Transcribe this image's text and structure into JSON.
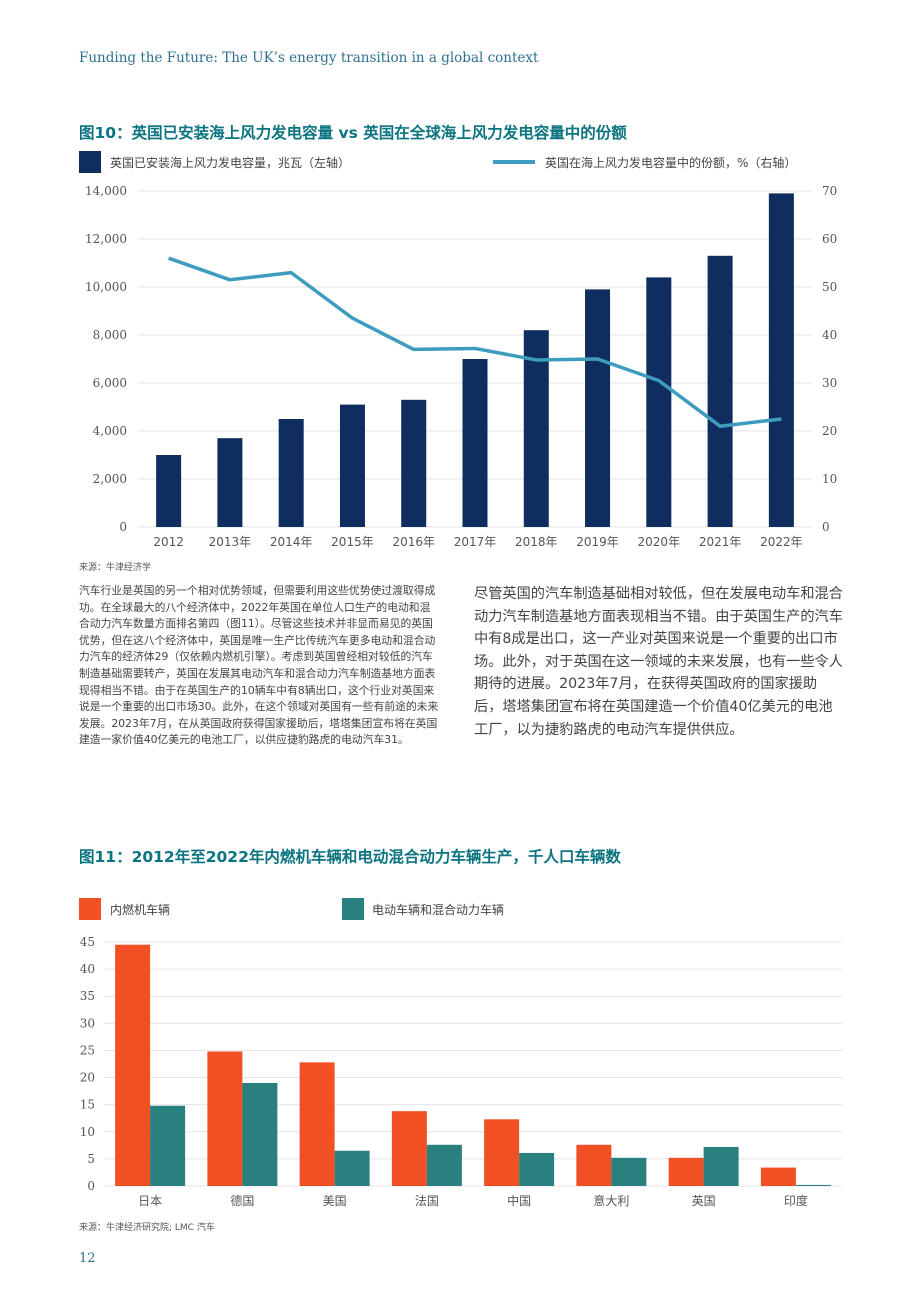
{
  "header": {
    "running_title": "Funding the Future: The UK’s energy transition in a global context"
  },
  "figure10": {
    "title": "图10：英国已安装海上风力发电容量 vs 英国在全球海上风力发电容量中的份额",
    "source": "来源：牛津经济学"
  },
  "figure11": {
    "title": "图11：2012年至2022年内燃机车辆和电动混合动力车辆生产，千人口车辆数",
    "source": "来源：牛津经济研究院; LMC 汽车"
  },
  "body": {
    "left_paragraph": "汽车行业是英国的另一个相对优势领域，但需要利用这些优势使过渡取得成功。在全球最大的八个经济体中，2022年英国在单位人口生产的电动和混合动力汽车数量方面排名第四（图11）。尽管这些技术并非显而易见的英国优势，但在这八个经济体中，英国是唯一生产比传统汽车更多电动和混合动力汽车的经济体29（仅依赖内燃机引擎）。考虑到英国曾经相对较低的汽车制造基础需要转产，英国在发展其电动汽车和混合动力汽车制造基地方面表现得相当不错。由于在英国生产的10辆车中有8辆出口，这个行业对英国来说是一个重要的出口市场30。此外，在这个领域对英国有一些有前途的未来发展。2023年7月，在从英国政府获得国家援助后，塔塔集团宣布将在英国建造一家价值40亿美元的电池工厂，以供应捷豹路虎的电动汽车31。",
    "right_paragraph": "尽管英国的汽车制造基础相对较低，但在发展电动车和混合动力汽车制造基地方面表现相当不错。由于英国生产的汽车中有8成是出口，这一产业对英国来说是一个重要的出口市场。此外，对于英国在这一领域的未来发展，也有一些令人期待的进展。2023年7月，在获得英国政府的国家援助后，塔塔集团宣布将在英国建造一个价值40亿美元的电池工厂，以为捷豹路虎的电动汽车提供供应。"
  },
  "page_number": "12",
  "chart_data": [
    {
      "type": "bar",
      "categories": [
        "2012",
        "2013年",
        "2014年",
        "2015年",
        "2016年",
        "2017年",
        "2018年",
        "2019年",
        "2020年",
        "2021年",
        "2022年"
      ],
      "series": [
        {
          "name": "英国已安装海上风力发电容量，兆瓦（左轴）",
          "type": "bar",
          "axis": "left",
          "color": "#0f2d5e",
          "values": [
            3000,
            3700,
            4500,
            5100,
            5300,
            7000,
            8200,
            9900,
            10400,
            11300,
            13900
          ]
        },
        {
          "name": "英国在海上风力发电容量中的份额，%（右轴）",
          "type": "line",
          "axis": "right",
          "color": "#3e9cbf",
          "values": [
            56,
            51.5,
            53,
            43.5,
            37,
            37.2,
            34.8,
            35,
            30.5,
            21,
            22.5
          ]
        }
      ],
      "y_left": {
        "range": [
          0,
          14000
        ],
        "ticks": [
          "0",
          "2,000",
          "4,000",
          "6,000",
          "8,000",
          "10,000",
          "12,000",
          "14,000"
        ]
      },
      "y_right": {
        "range": [
          0,
          70
        ],
        "ticks": [
          "0",
          "10",
          "20",
          "30",
          "40",
          "50",
          "60",
          "70"
        ]
      },
      "grid": true,
      "legend": "top"
    },
    {
      "type": "bar",
      "categories": [
        "日本",
        "德国",
        "美国",
        "法国",
        "中国",
        "意大利",
        "英国",
        "印度"
      ],
      "series": [
        {
          "name": "内燃机车辆",
          "color": "#f05023",
          "values": [
            44.5,
            24.8,
            22.8,
            13.8,
            12.3,
            7.6,
            5.2,
            3.4
          ]
        },
        {
          "name": "电动车辆和混合动力车辆",
          "color": "#2a7f7f",
          "values": [
            14.8,
            19,
            6.5,
            7.6,
            6.1,
            5.2,
            7.2,
            0.2
          ]
        }
      ],
      "y": {
        "range": [
          0,
          45
        ],
        "ticks": [
          "0",
          "5",
          "10",
          "15",
          "20",
          "25",
          "30",
          "35",
          "40",
          "45"
        ]
      },
      "grid": true,
      "legend": "top"
    }
  ]
}
